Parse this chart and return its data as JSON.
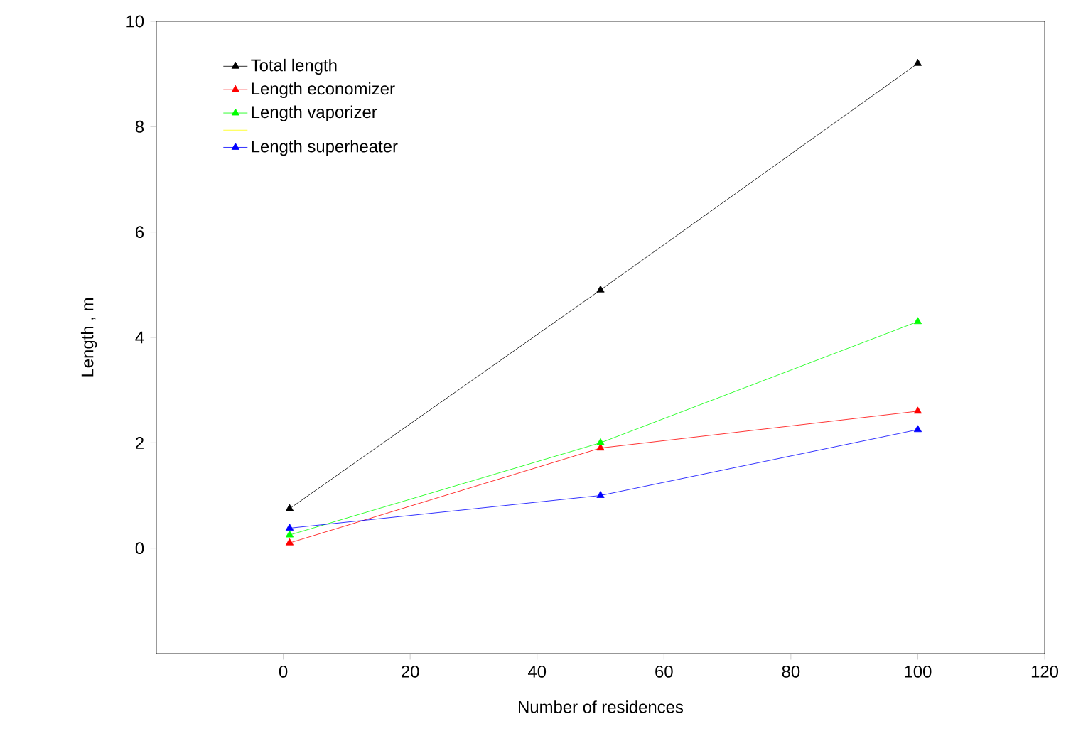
{
  "chart_data": {
    "type": "line",
    "xlabel": "Number of residences",
    "ylabel": "Length , m",
    "x": [
      1,
      50,
      100
    ],
    "series": [
      {
        "name": "Total length",
        "color": "#000000",
        "values": [
          0.75,
          4.9,
          9.2
        ]
      },
      {
        "name": "Length economizer",
        "color": "#ff0000",
        "values": [
          0.1,
          1.9,
          2.6
        ]
      },
      {
        "name": "Length vaporizer",
        "color": "#00ff00",
        "values": [
          0.25,
          2.0,
          4.3
        ]
      },
      {
        "color": "#ffff00",
        "values": [
          null,
          null,
          null
        ]
      },
      {
        "name": "Length superheater",
        "color": "#0000ff",
        "values": [
          0.38,
          1.0,
          2.25
        ]
      }
    ],
    "xlim": [
      -20,
      120
    ],
    "ylim": [
      -2,
      10
    ],
    "xticks": [
      0,
      20,
      40,
      60,
      80,
      100,
      120
    ],
    "yticks": [
      0,
      2,
      4,
      6,
      8,
      10
    ],
    "marker": "triangle",
    "line_style": "solid",
    "legend": "top left",
    "grid": false
  }
}
